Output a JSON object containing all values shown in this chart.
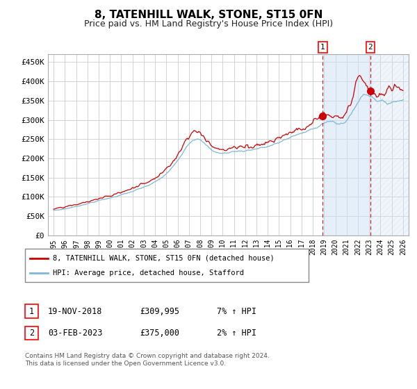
{
  "title": "8, TATENHILL WALK, STONE, ST15 0FN",
  "subtitle": "Price paid vs. HM Land Registry's House Price Index (HPI)",
  "ylabel_ticks": [
    "£0",
    "£50K",
    "£100K",
    "£150K",
    "£200K",
    "£250K",
    "£300K",
    "£350K",
    "£400K",
    "£450K"
  ],
  "ytick_values": [
    0,
    50000,
    100000,
    150000,
    200000,
    250000,
    300000,
    350000,
    400000,
    450000
  ],
  "ylim": [
    0,
    470000
  ],
  "hpi_color": "#7fb8d8",
  "price_color": "#cc0000",
  "bg_color": "#ffffff",
  "plot_bg_color": "#ffffff",
  "grid_color": "#cccccc",
  "shade_color": "#cce0f5",
  "legend_label_red": "8, TATENHILL WALK, STONE, ST15 0FN (detached house)",
  "legend_label_blue": "HPI: Average price, detached house, Stafford",
  "sale1_date": "19-NOV-2018",
  "sale1_price": "£309,995",
  "sale1_hpi": "7% ↑ HPI",
  "sale2_date": "03-FEB-2023",
  "sale2_price": "£375,000",
  "sale2_hpi": "2% ↑ HPI",
  "footnote": "Contains HM Land Registry data © Crown copyright and database right 2024.\nThis data is licensed under the Open Government Licence v3.0.",
  "x_start_year": 1995,
  "x_end_year": 2026,
  "sale1_year": 2018.88,
  "sale2_year": 2023.09,
  "sale1_price_val": 309995,
  "sale2_price_val": 375000
}
